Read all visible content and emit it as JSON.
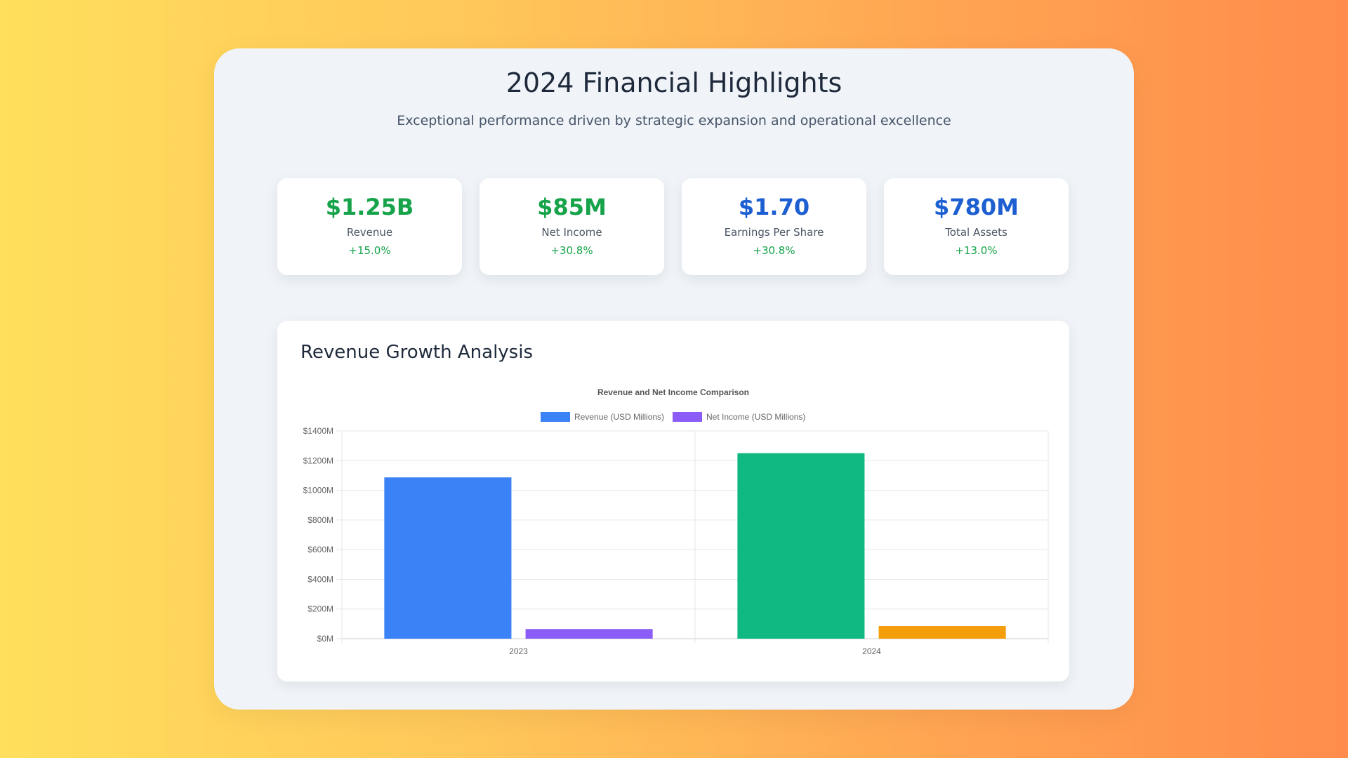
{
  "header": {
    "title": "2024 Financial Highlights",
    "subtitle": "Exceptional performance driven by strategic expansion and operational excellence"
  },
  "kpis": [
    {
      "value": "$1.25B",
      "label": "Revenue",
      "change": "+15.0%",
      "color": "#16a34a"
    },
    {
      "value": "$85M",
      "label": "Net Income",
      "change": "+30.8%",
      "color": "#16a34a"
    },
    {
      "value": "$1.70",
      "label": "Earnings Per Share",
      "change": "+30.8%",
      "color": "#1d5fd1"
    },
    {
      "value": "$780M",
      "label": "Total Assets",
      "change": "+13.0%",
      "color": "#1d5fd1"
    }
  ],
  "section": {
    "heading": "Revenue Growth Analysis"
  },
  "chart_data": {
    "type": "bar",
    "title": "Revenue and Net Income Comparison",
    "categories": [
      "2023",
      "2024"
    ],
    "series": [
      {
        "name": "Revenue (USD Millions)",
        "values": [
          1087,
          1250
        ],
        "legend_color": "#3b82f6",
        "bar_colors": [
          "#3b82f6",
          "#10b981"
        ]
      },
      {
        "name": "Net Income (USD Millions)",
        "values": [
          65,
          85
        ],
        "legend_color": "#8b5cf6",
        "bar_colors": [
          "#8b5cf6",
          "#f59e0b"
        ]
      }
    ],
    "ylim": [
      0,
      1400
    ],
    "yticks": [
      0,
      200,
      400,
      600,
      800,
      1000,
      1200,
      1400
    ],
    "ytick_labels": [
      "$0M",
      "$200M",
      "$400M",
      "$600M",
      "$800M",
      "$1000M",
      "$1200M",
      "$1400M"
    ],
    "grid": true,
    "legend_position": "top"
  }
}
